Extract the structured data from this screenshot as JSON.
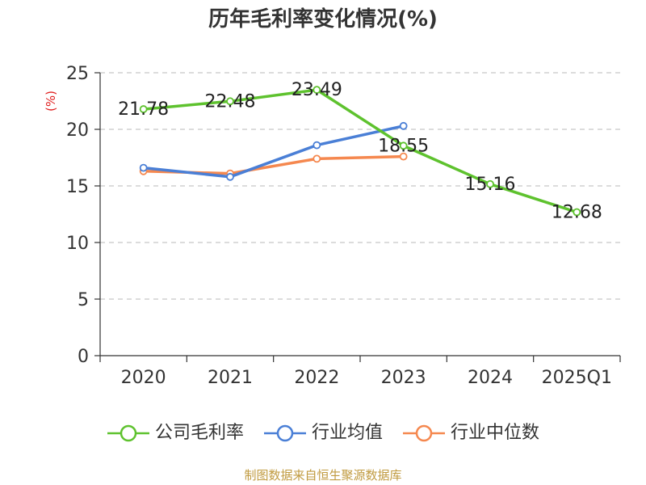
{
  "chart_data": {
    "type": "line",
    "title": "历年毛利率变化情况(%)",
    "ylabel": "(%)",
    "xlabel": "",
    "categories": [
      "2020",
      "2021",
      "2022",
      "2023",
      "2024",
      "2025Q1"
    ],
    "ylim": [
      0,
      25
    ],
    "yticks": [
      0,
      5,
      10,
      15,
      20,
      25
    ],
    "grid": "horizontal-dashed",
    "legend_position": "bottom",
    "series": [
      {
        "name": "公司毛利率",
        "color": "#5ec22e",
        "values": [
          21.78,
          22.48,
          23.49,
          18.55,
          15.16,
          12.68
        ],
        "data_labels": [
          "21.78",
          "22.48",
          "23.49",
          "18.55",
          "15.16",
          "12.68"
        ]
      },
      {
        "name": "行业均值",
        "color": "#4a7fd6",
        "values": [
          16.6,
          15.8,
          18.6,
          20.3,
          null,
          null
        ]
      },
      {
        "name": "行业中位数",
        "color": "#f5884f",
        "values": [
          16.3,
          16.1,
          17.4,
          17.6,
          null,
          null
        ]
      }
    ]
  },
  "footer": {
    "source": "制图数据来自恒生聚源数据库"
  }
}
